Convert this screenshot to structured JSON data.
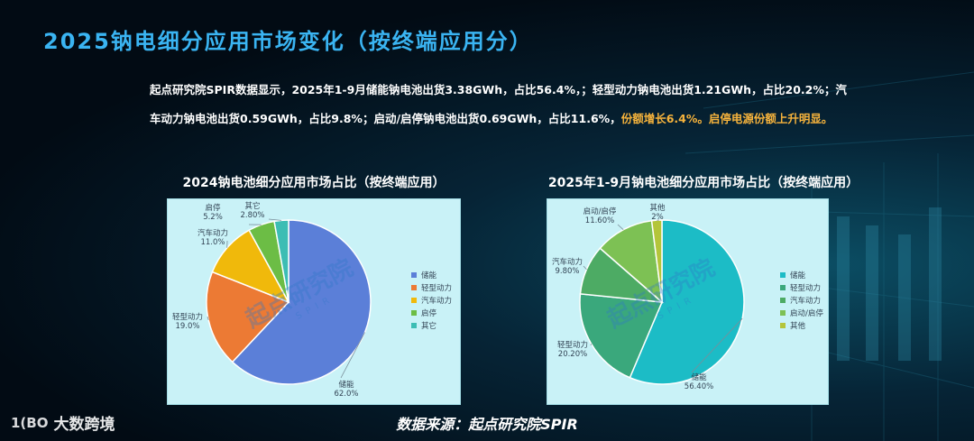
{
  "title": "2025钠电细分应用市场变化（按终端应用分）",
  "summary": {
    "line1": "起点研究院SPIR数据显示，2025年1-9月储能钠电池出货3.38GWh，占比56.4%，；轻型动力钠电池出货1.21GWh，占比20.2%；汽",
    "line2_normal": "车动力钠电池出货0.59GWh，占比9.8%；启动/启停钠电池出货0.69GWh，占比11.6%，",
    "line2_highlight": "份额增长6.4%。启停电源份额上升明显。"
  },
  "source": "数据来源：起点研究院SPIR",
  "logo": {
    "mark": "1(BO",
    "name": "大数跨境"
  },
  "watermark": {
    "text": "起点研究院",
    "sub": "SPIR"
  },
  "colors": {
    "accent": "#3ab4f2",
    "highlight": "#f6b33c"
  },
  "chart_data": [
    {
      "type": "pie",
      "title": "2024钠电池细分应用市场占比（按终端应用）",
      "categories": [
        "储能",
        "轻型动力",
        "汽车动力",
        "启停",
        "其它"
      ],
      "values": [
        62.0,
        19.0,
        11.0,
        5.2,
        2.8
      ],
      "labels": [
        "62.0%",
        "19.0%",
        "11.0%",
        "5.2%",
        "2.80%"
      ],
      "colors": [
        "#5b7fd8",
        "#ec7a34",
        "#f0b90b",
        "#6cbd45",
        "#3dbdb4"
      ],
      "legend": "right"
    },
    {
      "type": "pie",
      "title": "2025年1-9月钠电池细分应用市场占比（按终端应用）",
      "categories": [
        "储能",
        "轻型动力",
        "汽车动力",
        "启动/启停",
        "其他"
      ],
      "values": [
        56.4,
        20.2,
        9.8,
        11.6,
        2.0
      ],
      "labels": [
        "56.40%",
        "20.20%",
        "9.80%",
        "11.60%",
        "2%"
      ],
      "colors": [
        "#1cbcc6",
        "#3aa87c",
        "#4dab64",
        "#7dc154",
        "#b4c53a"
      ],
      "legend": "right"
    }
  ]
}
